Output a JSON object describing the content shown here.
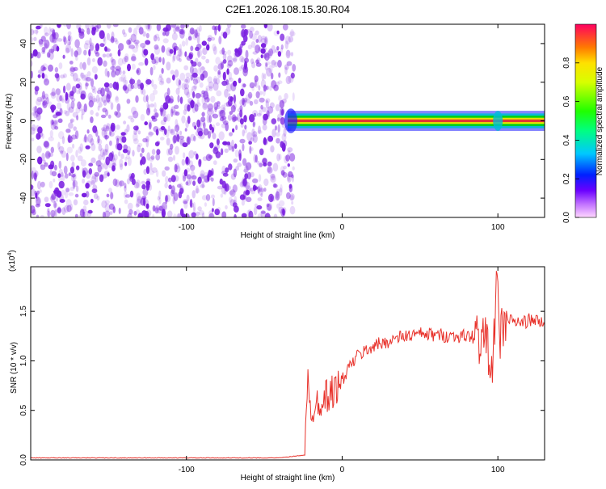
{
  "page_title": "C2E1.2026.108.15.30.R04",
  "colors": {
    "snr_line": "#e8322b",
    "speckle": "#7a1fe0",
    "band_core": "#e0223a",
    "band_mid": "#ffe600",
    "band_outer": "#00d400",
    "band_edge": "#00bcd8",
    "band_halo": "#2020ff"
  },
  "chart_data": [
    {
      "id": "spectrogram",
      "type": "heatmap",
      "title": "C2E1.2026.108.15.30.R04",
      "xlabel": "Height of straight line (km)",
      "ylabel": "Frequency (Hz)",
      "xlim": [
        -200,
        130
      ],
      "ylim": [
        -50,
        50
      ],
      "x_ticks": [
        -100,
        0,
        100
      ],
      "x_tick_labels": [
        "-100",
        "0",
        "100"
      ],
      "y_ticks": [
        -40,
        -20,
        0,
        20,
        40
      ],
      "y_tick_labels": [
        "-40",
        "-20",
        "0",
        "20",
        "40"
      ],
      "noise_region_x": [
        -200,
        -35
      ],
      "signal_band": {
        "x_start": -35,
        "x_end": 130,
        "center_hz": 0,
        "halfwidth_hz": 2
      },
      "colorbar": {
        "label": "Normalized spectral amplitude",
        "range": [
          0,
          1
        ],
        "ticks": [
          0.0,
          0.2,
          0.4,
          0.6,
          0.8
        ],
        "tick_labels": [
          "0.0",
          "0.2",
          "0.4",
          "0.6",
          "0.8"
        ]
      }
    },
    {
      "id": "snr",
      "type": "line",
      "xlabel": "Height of straight line (km)",
      "ylabel": "SNR (10 * v/v)",
      "y_multiplier": "(x10",
      "y_multiplier_exp": "4",
      "y_multiplier_close": ")",
      "xlim": [
        -200,
        130
      ],
      "ylim": [
        0,
        1.95
      ],
      "x_ticks": [
        -100,
        0,
        100
      ],
      "x_tick_labels": [
        "-100",
        "0",
        "100"
      ],
      "y_ticks": [
        0,
        0.5,
        1.0,
        1.5
      ],
      "y_tick_labels": [
        "0.0",
        "0.5",
        "1.0",
        "1.5"
      ],
      "series": [
        {
          "name": "SNR",
          "x": [
            -200,
            -40,
            -24,
            -23,
            -22,
            -21,
            -20,
            -18,
            -15,
            -10,
            -5,
            0,
            5,
            10,
            20,
            30,
            40,
            50,
            60,
            70,
            80,
            90,
            95,
            97,
            99,
            101,
            103,
            105,
            110,
            115,
            120,
            125,
            130
          ],
          "y": [
            0.02,
            0.02,
            0.05,
            0.4,
            0.8,
            0.5,
            0.5,
            0.55,
            0.6,
            0.65,
            0.7,
            0.8,
            0.95,
            1.05,
            1.15,
            1.2,
            1.25,
            1.27,
            1.26,
            1.25,
            1.25,
            1.23,
            1.1,
            0.9,
            1.9,
            1.2,
            1.35,
            1.42,
            1.4,
            1.38,
            1.41,
            1.4,
            1.38
          ]
        }
      ]
    }
  ]
}
